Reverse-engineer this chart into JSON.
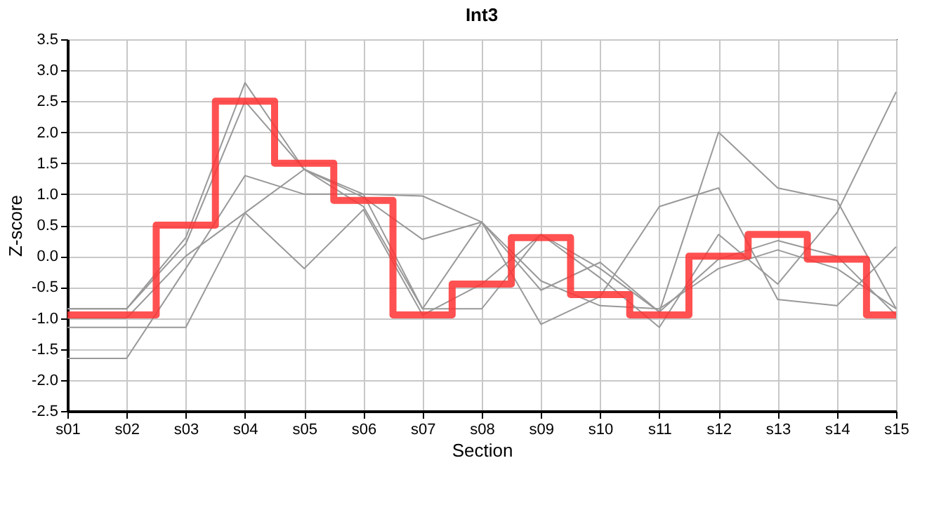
{
  "chart_data": {
    "type": "line",
    "title": "Int3",
    "xlabel": "Section",
    "ylabel": "Z-score",
    "categories": [
      "s01",
      "s02",
      "s03",
      "s04",
      "s05",
      "s06",
      "s07",
      "s08",
      "s09",
      "s10",
      "s11",
      "s12",
      "s13",
      "s14",
      "s15"
    ],
    "series": [
      {
        "color": "#999999",
        "values": [
          -0.85,
          -0.85,
          0.3,
          2.8,
          1.4,
          1.0,
          -0.85,
          -0.85,
          0.35,
          -0.35,
          -1.15,
          0.35,
          -0.45,
          0.7,
          2.65
        ]
      },
      {
        "color": "#999999",
        "values": [
          -0.85,
          -0.85,
          0.2,
          2.5,
          1.4,
          0.8,
          -0.85,
          0.55,
          -0.55,
          -0.1,
          -0.9,
          2.0,
          1.1,
          0.9,
          -0.85
        ]
      },
      {
        "color": "#999999",
        "values": [
          -1.65,
          -1.65,
          -0.2,
          1.3,
          1.0,
          1.0,
          0.97,
          0.55,
          -1.1,
          -0.65,
          0.8,
          1.1,
          -0.7,
          -0.8,
          0.15
        ]
      },
      {
        "color": "#999999",
        "values": [
          -1.15,
          -1.15,
          -1.15,
          0.7,
          1.4,
          0.95,
          0.27,
          0.55,
          -0.4,
          -0.8,
          -0.85,
          -0.2,
          0.1,
          -0.2,
          -0.85
        ]
      },
      {
        "color": "#999999",
        "values": [
          -1.0,
          -1.0,
          0.0,
          0.7,
          -0.2,
          0.75,
          -0.95,
          -0.45,
          0.35,
          -0.2,
          -0.9,
          -0.05,
          0.25,
          0.0,
          -0.95
        ]
      },
      {
        "type": "step",
        "color": "#ff3333",
        "values": [
          -0.95,
          -0.95,
          0.5,
          2.5,
          1.5,
          0.9,
          -0.95,
          -0.45,
          0.3,
          -0.62,
          -0.95,
          0.0,
          0.35,
          -0.05,
          -0.95
        ]
      }
    ],
    "ylim": [
      -2.5,
      3.5
    ],
    "yticks": [
      {
        "value": -2.5,
        "label": "-2.5"
      },
      {
        "value": -2,
        "label": "-2.0"
      },
      {
        "value": -1.5,
        "label": "-1.5"
      },
      {
        "value": -1,
        "label": "-1.0"
      },
      {
        "value": -0.5,
        "label": "-0.5"
      },
      {
        "value": 0,
        "label": "0.0"
      },
      {
        "value": 0.5,
        "label": "0.5"
      },
      {
        "value": 1,
        "label": "1.0"
      },
      {
        "value": 1.5,
        "label": "1.5"
      },
      {
        "value": 2,
        "label": "2.0"
      },
      {
        "value": 2.5,
        "label": "2.5"
      },
      {
        "value": 3,
        "label": "3.0"
      },
      {
        "value": 3.5,
        "label": "3.5"
      }
    ],
    "grid": true,
    "legend": false,
    "marker": "none",
    "line_style": "solid"
  }
}
